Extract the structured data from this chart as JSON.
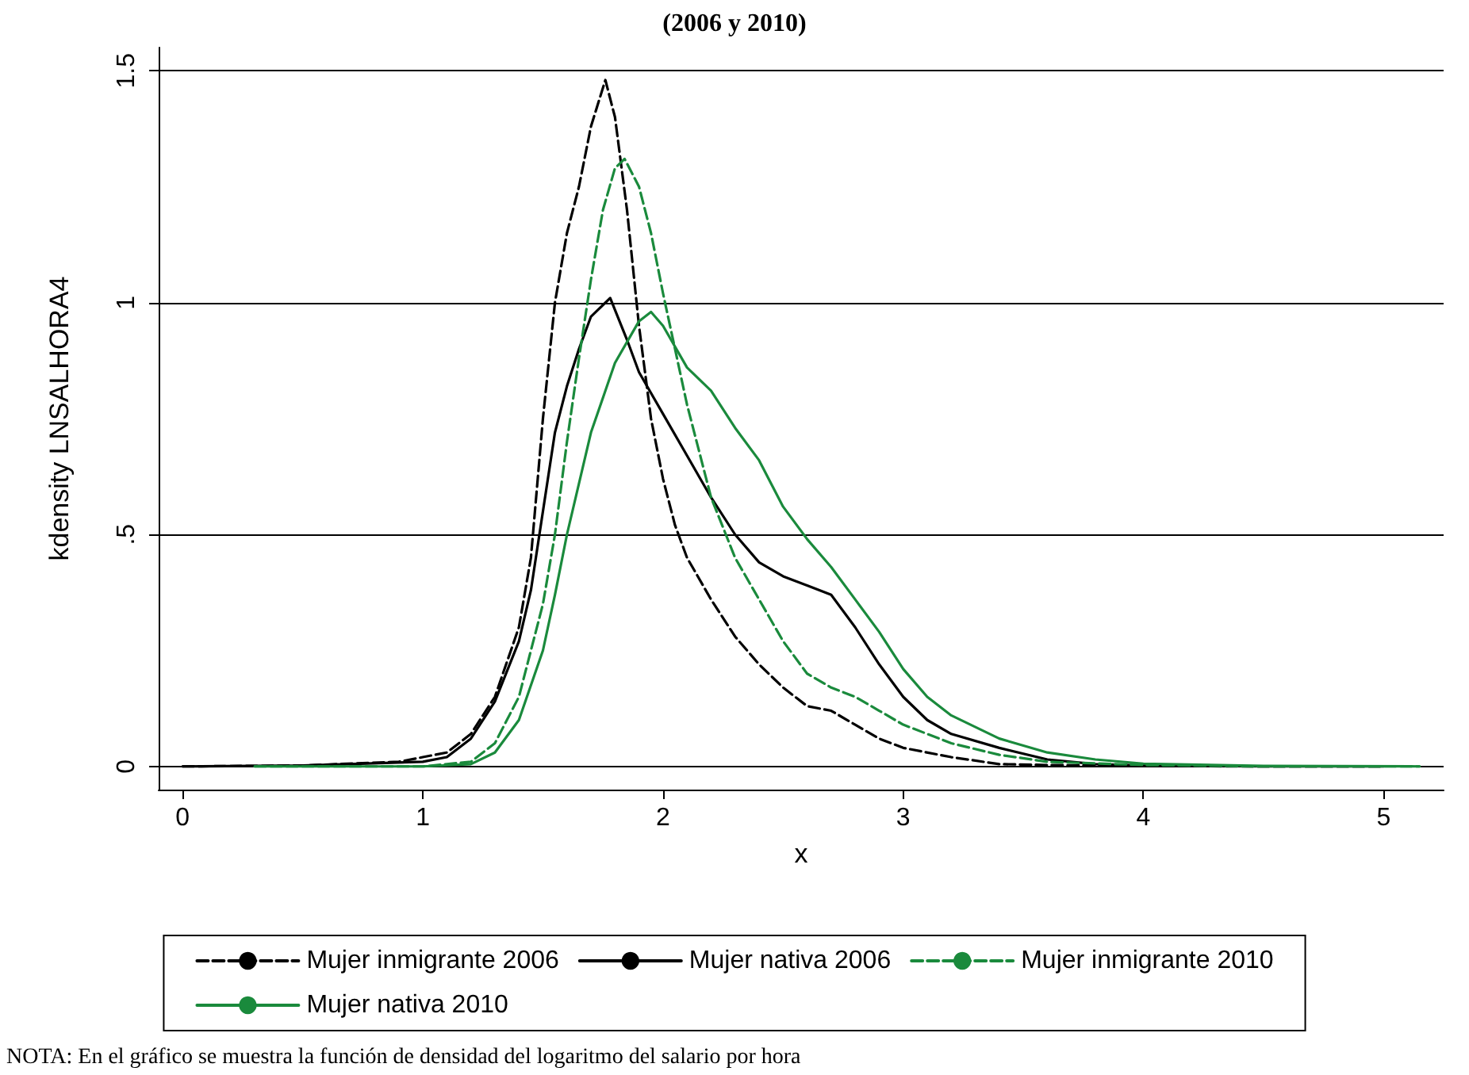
{
  "chart_data": {
    "type": "line",
    "title": "(2006 y 2010)",
    "xlabel": "x",
    "ylabel": "kdensity LNSALHORA4",
    "annotations": [
      "NOTA: En el gráfico se muestra la función de densidad del logaritmo del salario por hora"
    ],
    "xlim": [
      -0.1,
      5.25
    ],
    "xticks": [
      0,
      1,
      2,
      3,
      4,
      5
    ],
    "ylim": [
      -0.05,
      1.55
    ],
    "yticks": [
      0,
      {
        "value": 0.5,
        "label": ".5"
      },
      1,
      1.5
    ],
    "grid": "y",
    "legend": "bottom",
    "marker": "none",
    "series": [
      {
        "name": "Mujer inmigrante 2006",
        "color": "#000000",
        "line_style": "dashed",
        "x": [
          0.0,
          0.5,
          0.9,
          1.0,
          1.1,
          1.2,
          1.3,
          1.4,
          1.45,
          1.5,
          1.55,
          1.6,
          1.65,
          1.7,
          1.76,
          1.8,
          1.85,
          1.9,
          1.95,
          2.0,
          2.05,
          2.1,
          2.2,
          2.3,
          2.4,
          2.5,
          2.6,
          2.7,
          2.8,
          2.9,
          3.0,
          3.2,
          3.4,
          3.6,
          4.0,
          4.5,
          5.0
        ],
        "values": [
          0,
          0.002,
          0.01,
          0.02,
          0.03,
          0.07,
          0.15,
          0.3,
          0.45,
          0.75,
          1.0,
          1.15,
          1.25,
          1.38,
          1.48,
          1.4,
          1.2,
          0.95,
          0.75,
          0.62,
          0.52,
          0.45,
          0.36,
          0.28,
          0.22,
          0.17,
          0.13,
          0.12,
          0.09,
          0.06,
          0.04,
          0.02,
          0.005,
          0.003,
          0.001,
          0,
          0
        ]
      },
      {
        "name": "Mujer nativa 2006",
        "color": "#000000",
        "line_style": "solid",
        "x": [
          0.0,
          0.5,
          1.0,
          1.1,
          1.2,
          1.3,
          1.4,
          1.45,
          1.5,
          1.55,
          1.6,
          1.65,
          1.7,
          1.78,
          1.85,
          1.9,
          2.0,
          2.1,
          2.2,
          2.3,
          2.4,
          2.5,
          2.6,
          2.7,
          2.8,
          2.9,
          3.0,
          3.1,
          3.2,
          3.4,
          3.6,
          3.8,
          4.0,
          4.5,
          5.0
        ],
        "values": [
          0,
          0.002,
          0.01,
          0.02,
          0.06,
          0.14,
          0.27,
          0.38,
          0.55,
          0.72,
          0.82,
          0.9,
          0.97,
          1.01,
          0.92,
          0.85,
          0.76,
          0.67,
          0.58,
          0.5,
          0.44,
          0.41,
          0.39,
          0.37,
          0.3,
          0.22,
          0.15,
          0.1,
          0.07,
          0.04,
          0.015,
          0.005,
          0.002,
          0,
          0
        ]
      },
      {
        "name": "Mujer inmigrante 2010",
        "color": "#1a8a3c",
        "line_style": "dashed",
        "x": [
          0.3,
          1.0,
          1.2,
          1.3,
          1.4,
          1.5,
          1.55,
          1.6,
          1.65,
          1.7,
          1.75,
          1.8,
          1.84,
          1.9,
          1.95,
          2.0,
          2.05,
          2.1,
          2.2,
          2.3,
          2.4,
          2.5,
          2.6,
          2.7,
          2.8,
          2.9,
          3.0,
          3.2,
          3.4,
          3.6,
          4.0,
          4.5,
          5.15
        ],
        "values": [
          0,
          0,
          0.01,
          0.05,
          0.15,
          0.35,
          0.5,
          0.7,
          0.88,
          1.05,
          1.2,
          1.29,
          1.31,
          1.25,
          1.15,
          1.02,
          0.9,
          0.78,
          0.58,
          0.45,
          0.36,
          0.27,
          0.2,
          0.17,
          0.15,
          0.12,
          0.09,
          0.05,
          0.025,
          0.01,
          0.003,
          0,
          0
        ]
      },
      {
        "name": "Mujer nativa 2010",
        "color": "#1a8a3c",
        "line_style": "solid",
        "x": [
          0.3,
          1.0,
          1.2,
          1.3,
          1.4,
          1.5,
          1.55,
          1.6,
          1.7,
          1.8,
          1.9,
          1.95,
          2.0,
          2.1,
          2.2,
          2.3,
          2.4,
          2.5,
          2.6,
          2.7,
          2.8,
          2.9,
          3.0,
          3.1,
          3.2,
          3.4,
          3.6,
          3.8,
          4.0,
          4.5,
          5.15
        ],
        "values": [
          0,
          0,
          0.005,
          0.03,
          0.1,
          0.25,
          0.37,
          0.5,
          0.72,
          0.87,
          0.96,
          0.98,
          0.95,
          0.86,
          0.81,
          0.73,
          0.66,
          0.56,
          0.49,
          0.43,
          0.36,
          0.29,
          0.21,
          0.15,
          0.11,
          0.06,
          0.03,
          0.015,
          0.006,
          0.001,
          0
        ]
      }
    ]
  }
}
